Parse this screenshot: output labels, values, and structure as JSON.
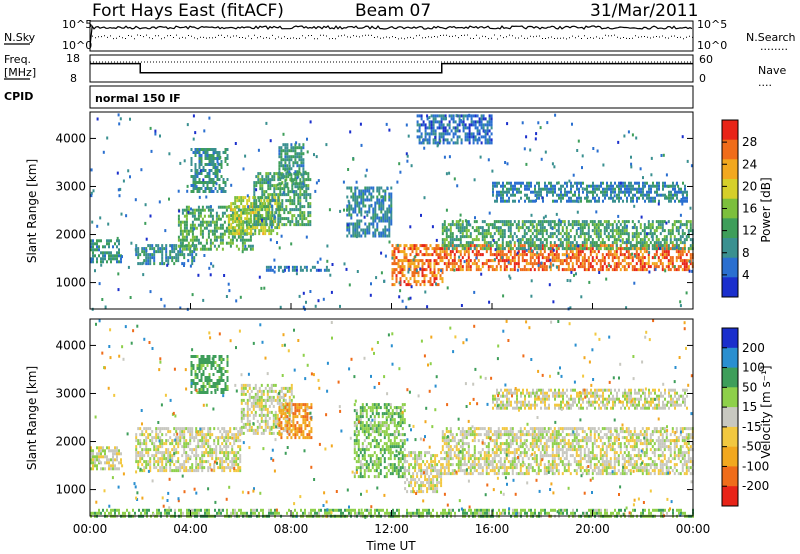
{
  "header": {
    "station": "Fort Hays East (fitACF)",
    "beam": "Beam 07",
    "date": "31/Mar/2011"
  },
  "noise_panel": {
    "left_label": "N.Sky",
    "left_ticks": [
      "10^5",
      "10^0"
    ],
    "right_ticks": [
      "10^5",
      "10^0"
    ],
    "right_label": "N.Search",
    "right_legend": "........"
  },
  "freq_panel": {
    "label_line1": "Freq.",
    "label_line2": "[MHz]",
    "left_ticks": [
      "18",
      "8"
    ],
    "right_ticks": [
      "60",
      "0"
    ],
    "right_label": "Nave",
    "right_legend": "....",
    "freq_steps_mhz": [
      {
        "start_hr": 0.0,
        "end_hr": 2.0,
        "value": 15.5
      },
      {
        "start_hr": 2.0,
        "end_hr": 14.0,
        "value": 10.8
      },
      {
        "start_hr": 14.0,
        "end_hr": 24.0,
        "value": 15.5
      }
    ]
  },
  "cpid": {
    "label": "CPID",
    "value": "normal 150 IF"
  },
  "chart_data": [
    {
      "type": "heatmap",
      "name": "power",
      "ylabel": "Slant Range [km]",
      "y_ticks": [
        "1000",
        "2000",
        "3000",
        "4000"
      ],
      "ylim": [
        450,
        4550
      ],
      "xlim_hours": [
        0,
        24
      ],
      "colorbar_label": "Power [dB]",
      "colorbar_ticks": [
        "4",
        "8",
        "12",
        "16",
        "20",
        "24",
        "28"
      ],
      "colorbar_range": [
        0,
        32
      ],
      "colorbar_colors": [
        "#1b2fcc",
        "#2a6fd0",
        "#3a9090",
        "#3e9e5a",
        "#7cbf3c",
        "#d6cf2a",
        "#f2a81f",
        "#ef6c1a",
        "#e82418"
      ],
      "echo_regions": [
        {
          "t0": 0.0,
          "t1": 1.2,
          "r0": 1450,
          "r1": 1900,
          "power": 10
        },
        {
          "t0": 1.8,
          "t1": 4.2,
          "r0": 1400,
          "r1": 1800,
          "power": 9
        },
        {
          "t0": 3.5,
          "t1": 6.5,
          "r0": 1700,
          "r1": 2600,
          "power": 13
        },
        {
          "t0": 4.0,
          "t1": 5.5,
          "r0": 2900,
          "r1": 3800,
          "power": 10
        },
        {
          "t0": 5.5,
          "t1": 7.5,
          "r0": 2000,
          "r1": 2800,
          "power": 18
        },
        {
          "t0": 6.5,
          "t1": 8.8,
          "r0": 2200,
          "r1": 3300,
          "power": 12
        },
        {
          "t0": 7.5,
          "t1": 8.5,
          "r0": 3000,
          "r1": 3900,
          "power": 10
        },
        {
          "t0": 7.0,
          "t1": 9.5,
          "r0": 1250,
          "r1": 1350,
          "power": 7
        },
        {
          "t0": 10.2,
          "t1": 12.0,
          "r0": 2000,
          "r1": 3000,
          "power": 8
        },
        {
          "t0": 12.0,
          "t1": 14.0,
          "r0": 950,
          "r1": 1800,
          "power": 26
        },
        {
          "t0": 14.0,
          "t1": 24.0,
          "r0": 1300,
          "r1": 1800,
          "power": 27
        },
        {
          "t0": 14.0,
          "t1": 24.0,
          "r0": 1700,
          "r1": 2300,
          "power": 12
        },
        {
          "t0": 16.0,
          "t1": 23.8,
          "r0": 2700,
          "r1": 3100,
          "power": 8
        },
        {
          "t0": 13.0,
          "t1": 16.0,
          "r0": 3900,
          "r1": 4500,
          "power": 6
        }
      ]
    },
    {
      "type": "heatmap",
      "name": "velocity",
      "ylabel": "Slant Range [km]",
      "y_ticks": [
        "1000",
        "2000",
        "3000",
        "4000"
      ],
      "ylim": [
        450,
        4550
      ],
      "xlim_hours": [
        0,
        24
      ],
      "xlabel": "Time UT",
      "x_ticks": [
        "00:00",
        "04:00",
        "08:00",
        "12:00",
        "16:00",
        "20:00",
        "00:00"
      ],
      "colorbar_label": "Velocity [m s⁻¹]",
      "colorbar_ticks": [
        "200",
        "100",
        "50",
        "15",
        "-15",
        "-50",
        "-100",
        "-200"
      ],
      "colorbar_colors": [
        "#1b2fcc",
        "#2a8fd0",
        "#3e9e5a",
        "#8ed04a",
        "#c8c8c0",
        "#f2c840",
        "#f2a81f",
        "#ef6c1a",
        "#e82418"
      ],
      "echo_regions": [
        {
          "t0": 0.0,
          "t1": 1.2,
          "r0": 1450,
          "r1": 1900,
          "vel": 0
        },
        {
          "t0": 1.8,
          "t1": 6.0,
          "r0": 1400,
          "r1": 2300,
          "vel": 0
        },
        {
          "t0": 4.0,
          "t1": 5.5,
          "r0": 3000,
          "r1": 3800,
          "vel": 70
        },
        {
          "t0": 6.0,
          "t1": 8.0,
          "r0": 2200,
          "r1": 3200,
          "vel": 0
        },
        {
          "t0": 7.5,
          "t1": 8.8,
          "r0": 2100,
          "r1": 2800,
          "vel": -90
        },
        {
          "t0": 10.5,
          "t1": 12.5,
          "r0": 1300,
          "r1": 2800,
          "vel": 40
        },
        {
          "t0": 12.5,
          "t1": 14.0,
          "r0": 950,
          "r1": 1800,
          "vel": 0
        },
        {
          "t0": 14.0,
          "t1": 24.0,
          "r0": 1350,
          "r1": 2300,
          "vel": 0
        },
        {
          "t0": 16.0,
          "t1": 23.8,
          "r0": 2700,
          "r1": 3100,
          "vel": 0
        },
        {
          "t0": 0.0,
          "t1": 24.0,
          "r0": 450,
          "r1": 600,
          "vel": 40
        }
      ]
    }
  ]
}
